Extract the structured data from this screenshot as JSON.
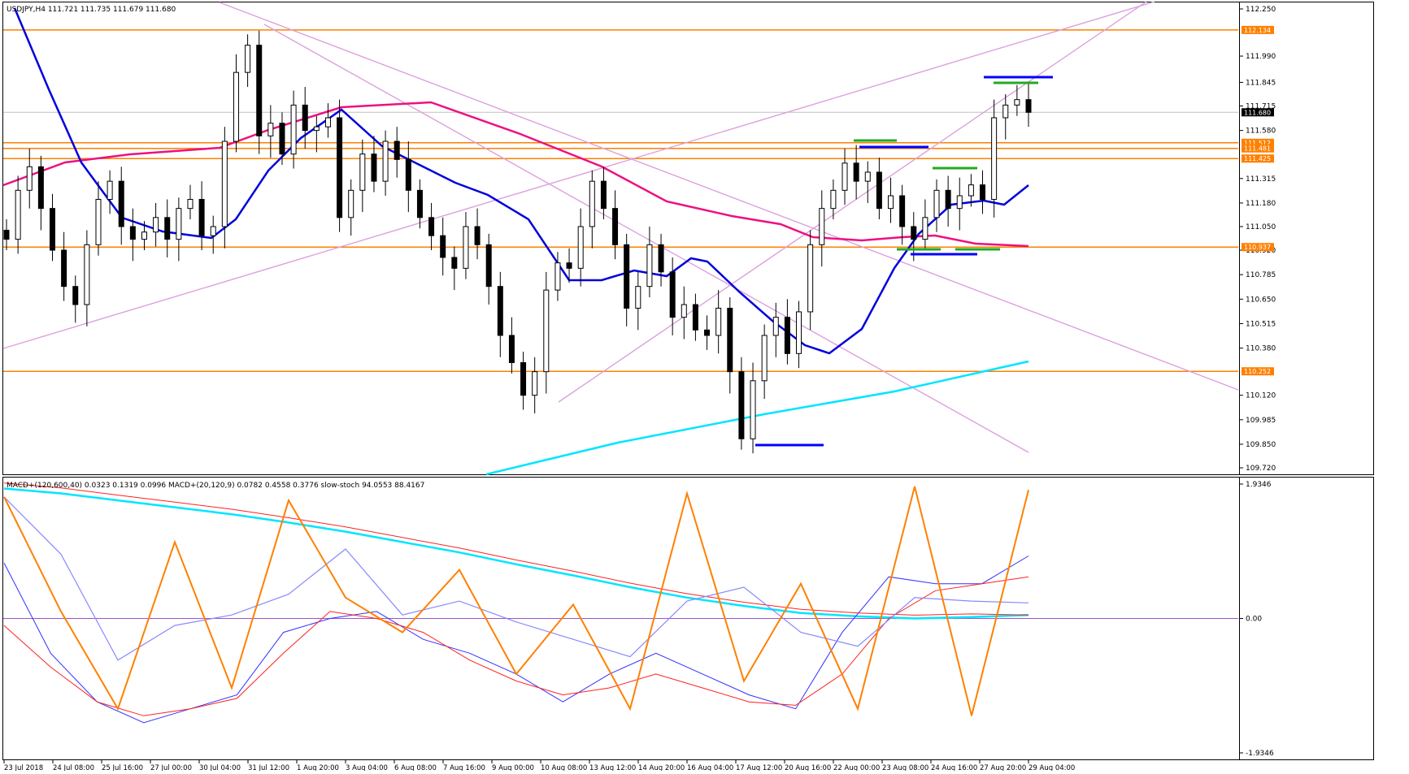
{
  "window": {
    "header": "USDJPY,H4  111.721 111.735 111.679 111.680",
    "indicator_header": "MACD+(120,600,40) 0.0323 0.1319 0.0996  MACD+(20,120,9) 0.0782 0.4558 0.3776  slow-stoch 94.0553 88.4167"
  },
  "colors": {
    "background": "#ffffff",
    "frame": "#000000",
    "level": "#ff8000",
    "trendline": "#dda0dd",
    "ma_fast": "#0000dd",
    "ma_slow": "#ee1080",
    "ma_long": "#00e5ff",
    "mark_blue": "#0000ff",
    "mark_green": "#22aa22",
    "macd_long_main": "#00e5ff",
    "macd_long_signal": "#ff2020",
    "macd_short_main": "#3030ff",
    "macd_short_signal": "#ff2020",
    "stoch_main": "#ff8000",
    "stoch_signal": "#8888ff",
    "zero_line": "#9955cc"
  },
  "chart_data": [
    {
      "type": "candlestick",
      "symbol": "USDJPY,H4",
      "ohlc_readout": {
        "open": 111.721,
        "high": 111.735,
        "low": 111.679,
        "close": 111.68
      },
      "ylim": [
        109.72,
        112.25
      ],
      "y_ticks": [
        "112.250",
        "111.990",
        "111.845",
        "111.715",
        "111.580",
        "111.315",
        "111.180",
        "111.050",
        "110.920",
        "110.785",
        "110.650",
        "110.515",
        "110.380",
        "110.120",
        "109.985",
        "109.850",
        "109.720"
      ],
      "current_price": 111.68,
      "current_price_label": "111.680",
      "x_labels": [
        "23 Jul 2018",
        "24 Jul 08:00",
        "25 Jul 16:00",
        "27 Jul 00:00",
        "30 Jul 04:00",
        "31 Jul 12:00",
        "1 Aug 20:00",
        "3 Aug 04:00",
        "6 Aug 08:00",
        "7 Aug 16:00",
        "9 Aug 00:00",
        "10 Aug 08:00",
        "13 Aug 12:00",
        "14 Aug 20:00",
        "16 Aug 04:00",
        "17 Aug 12:00",
        "20 Aug 16:00",
        "22 Aug 00:00",
        "23 Aug 08:00",
        "24 Aug 16:00",
        "27 Aug 20:00",
        "29 Aug 04:00"
      ],
      "levels": [
        {
          "value": 112.134,
          "label": "112.134"
        },
        {
          "value": 111.512,
          "label": "111.512"
        },
        {
          "value": 111.481,
          "label": "111.481"
        },
        {
          "value": 111.425,
          "label": "111.425"
        },
        {
          "value": 110.937,
          "label": "110.937"
        },
        {
          "value": 110.252,
          "label": "110.252"
        }
      ],
      "closes": [
        110.98,
        111.25,
        111.38,
        111.15,
        110.92,
        110.72,
        110.62,
        110.95,
        111.2,
        111.3,
        111.05,
        110.98,
        111.02,
        111.1,
        110.98,
        111.15,
        111.2,
        111.0,
        111.05,
        111.52,
        111.9,
        112.05,
        111.55,
        111.62,
        111.45,
        111.72,
        111.58,
        111.6,
        111.65,
        111.1,
        111.25,
        111.45,
        111.3,
        111.52,
        111.42,
        111.25,
        111.1,
        111.0,
        110.88,
        110.82,
        111.05,
        110.95,
        110.72,
        110.45,
        110.3,
        110.12,
        110.25,
        110.7,
        110.85,
        110.82,
        111.05,
        111.3,
        111.15,
        110.95,
        110.6,
        110.72,
        110.95,
        110.8,
        110.55,
        110.62,
        110.48,
        110.45,
        110.6,
        110.25,
        109.88,
        110.2,
        110.45,
        110.55,
        110.35,
        110.58,
        110.95,
        111.15,
        111.25,
        111.4,
        111.3,
        111.35,
        111.15,
        111.22,
        111.05,
        110.98,
        111.1,
        111.25,
        111.15,
        111.22,
        111.28,
        111.2,
        111.65,
        111.72,
        111.75,
        111.68
      ],
      "lows_marked": [
        109.96,
        110.12
      ],
      "highs_marked": [
        112.14,
        111.84
      ]
    },
    {
      "type": "line",
      "title": "MACD+(120,600,40) 0.0323 0.1319 0.0996  MACD+(20,120,9) 0.0782 0.4558 0.3776  slow-stoch 94.0553 88.4167",
      "ylim": [
        -1.9346,
        1.9346
      ],
      "y_ticks": [
        "1.9346",
        "0.00",
        "-1.9346"
      ],
      "series": [
        {
          "name": "MACD+(120,600,40)",
          "values": [
            1.87,
            1.8,
            1.7,
            1.6,
            1.5,
            1.38,
            1.25,
            1.1,
            0.95,
            0.78,
            0.62,
            0.45,
            0.3,
            0.18,
            0.08,
            0.03,
            0.0,
            0.02,
            0.05
          ]
        },
        {
          "name": "slow-stoch",
          "values": [
            1.75,
            0.1,
            -1.3,
            1.1,
            -1.0,
            1.7,
            0.3,
            -0.2,
            0.7,
            -0.8,
            0.2,
            -1.3,
            1.8,
            -0.9,
            0.5,
            -1.3,
            1.9,
            -1.4,
            1.85
          ]
        }
      ]
    }
  ]
}
